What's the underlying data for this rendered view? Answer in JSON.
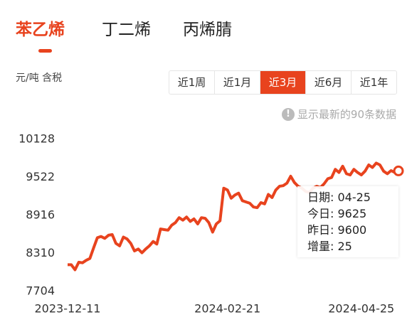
{
  "tabs": [
    "苯乙烯",
    "丁二烯",
    "丙烯腈"
  ],
  "unit": "元/吨 含税",
  "periods": [
    "近1周",
    "近1月",
    "近3月",
    "近6月",
    "近1年"
  ],
  "note": "显示最新的90条数据",
  "tooltip": [
    "日期: 04-25",
    "今日: 9625",
    "昨日: 9600",
    "增量: 25"
  ],
  "chart_data": {
    "type": "line",
    "color": "#e8431e",
    "grid": false,
    "categories": [
      "2023-12-11",
      null,
      null,
      null,
      null,
      null,
      null,
      null,
      null,
      null,
      null,
      null,
      null,
      null,
      null,
      null,
      null,
      null,
      null,
      null,
      null,
      null,
      null,
      null,
      null,
      null,
      null,
      null,
      null,
      null,
      null,
      null,
      null,
      null,
      null,
      null,
      null,
      null,
      null,
      null,
      null,
      null,
      null,
      "2024-02-21",
      null,
      null,
      null,
      null,
      null,
      null,
      null,
      null,
      null,
      null,
      null,
      null,
      null,
      null,
      null,
      null,
      null,
      null,
      null,
      null,
      null,
      null,
      null,
      null,
      null,
      null,
      null,
      null,
      null,
      null,
      null,
      null,
      null,
      null,
      null,
      "2024-04-25",
      null,
      null,
      null,
      null,
      null,
      null,
      null,
      null,
      null,
      null
    ],
    "values": [
      8130,
      8130,
      8050,
      8170,
      8160,
      8200,
      8230,
      8400,
      8560,
      8580,
      8550,
      8600,
      8610,
      8470,
      8430,
      8570,
      8540,
      8470,
      8350,
      8380,
      8320,
      8380,
      8430,
      8500,
      8460,
      8700,
      8690,
      8680,
      8760,
      8800,
      8880,
      8840,
      8890,
      8820,
      8860,
      8780,
      8880,
      8870,
      8800,
      8650,
      8780,
      8830,
      9350,
      9320,
      9190,
      9240,
      9270,
      9150,
      9130,
      9110,
      9050,
      9040,
      9120,
      9100,
      9250,
      9200,
      9320,
      9380,
      9390,
      9430,
      9540,
      9440,
      9380,
      9350,
      9300,
      9280,
      9350,
      9380,
      9360,
      9420,
      9500,
      9520,
      9650,
      9600,
      9700,
      9580,
      9560,
      9650,
      9600,
      9560,
      9620,
      9720,
      9680,
      9750,
      9720,
      9620,
      9580,
      9630,
      9600,
      9625
    ],
    "ylim": [
      7704,
      10128
    ],
    "yticks": [
      7704,
      8310,
      8916,
      9522,
      10128
    ]
  }
}
